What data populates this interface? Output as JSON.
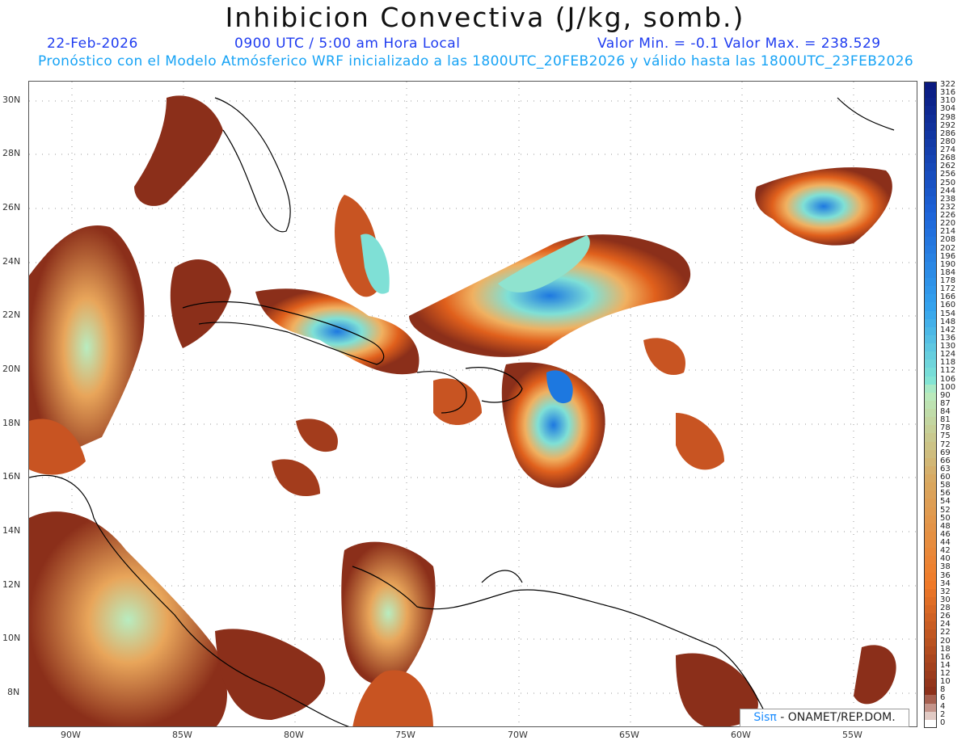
{
  "header": {
    "title": "Inhibicion Convectiva (J/kg, somb.)",
    "date": "22-Feb-2026",
    "time": "0900 UTC / 5:00 am Hora Local",
    "minmax": "Valor Min. = -0.1  Valor Max. = 238.529",
    "forecast": "Pronóstico con el Modelo Atmósferico WRF inicializado a las 1800UTC_20FEB2026 y válido hasta las  1800UTC_23FEB2026"
  },
  "axes": {
    "lat_labels": [
      "30N",
      "28N",
      "26N",
      "24N",
      "22N",
      "20N",
      "18N",
      "16N",
      "14N",
      "12N",
      "10N",
      "8N"
    ],
    "lon_labels": [
      "90W",
      "85W",
      "80W",
      "75W",
      "70W",
      "65W",
      "60W",
      "55W"
    ]
  },
  "colorbar": {
    "labels": [
      "322",
      "316",
      "310",
      "304",
      "298",
      "292",
      "286",
      "280",
      "274",
      "268",
      "262",
      "256",
      "250",
      "244",
      "238",
      "232",
      "226",
      "220",
      "214",
      "208",
      "202",
      "196",
      "190",
      "184",
      "178",
      "172",
      "166",
      "160",
      "154",
      "148",
      "142",
      "136",
      "130",
      "124",
      "118",
      "112",
      "106",
      "100",
      "90",
      "87",
      "84",
      "81",
      "78",
      "75",
      "72",
      "69",
      "66",
      "63",
      "60",
      "58",
      "56",
      "54",
      "52",
      "50",
      "48",
      "46",
      "44",
      "42",
      "40",
      "38",
      "36",
      "34",
      "32",
      "30",
      "28",
      "26",
      "24",
      "22",
      "20",
      "18",
      "16",
      "14",
      "12",
      "10",
      "8",
      "6",
      "4",
      "2",
      "0"
    ]
  },
  "credit": {
    "logo": "Sis",
    "pi": "π",
    "text": "- ONAMET/REP.DOM."
  },
  "colors": {
    "title_blue": "#1f3cf0",
    "forecast_blue": "#17a3f5",
    "cin_low": "#8b2f1a",
    "cin_mid": "#e8621a",
    "cin_high": "#9be3c6",
    "cin_max": "#1d78e0"
  }
}
